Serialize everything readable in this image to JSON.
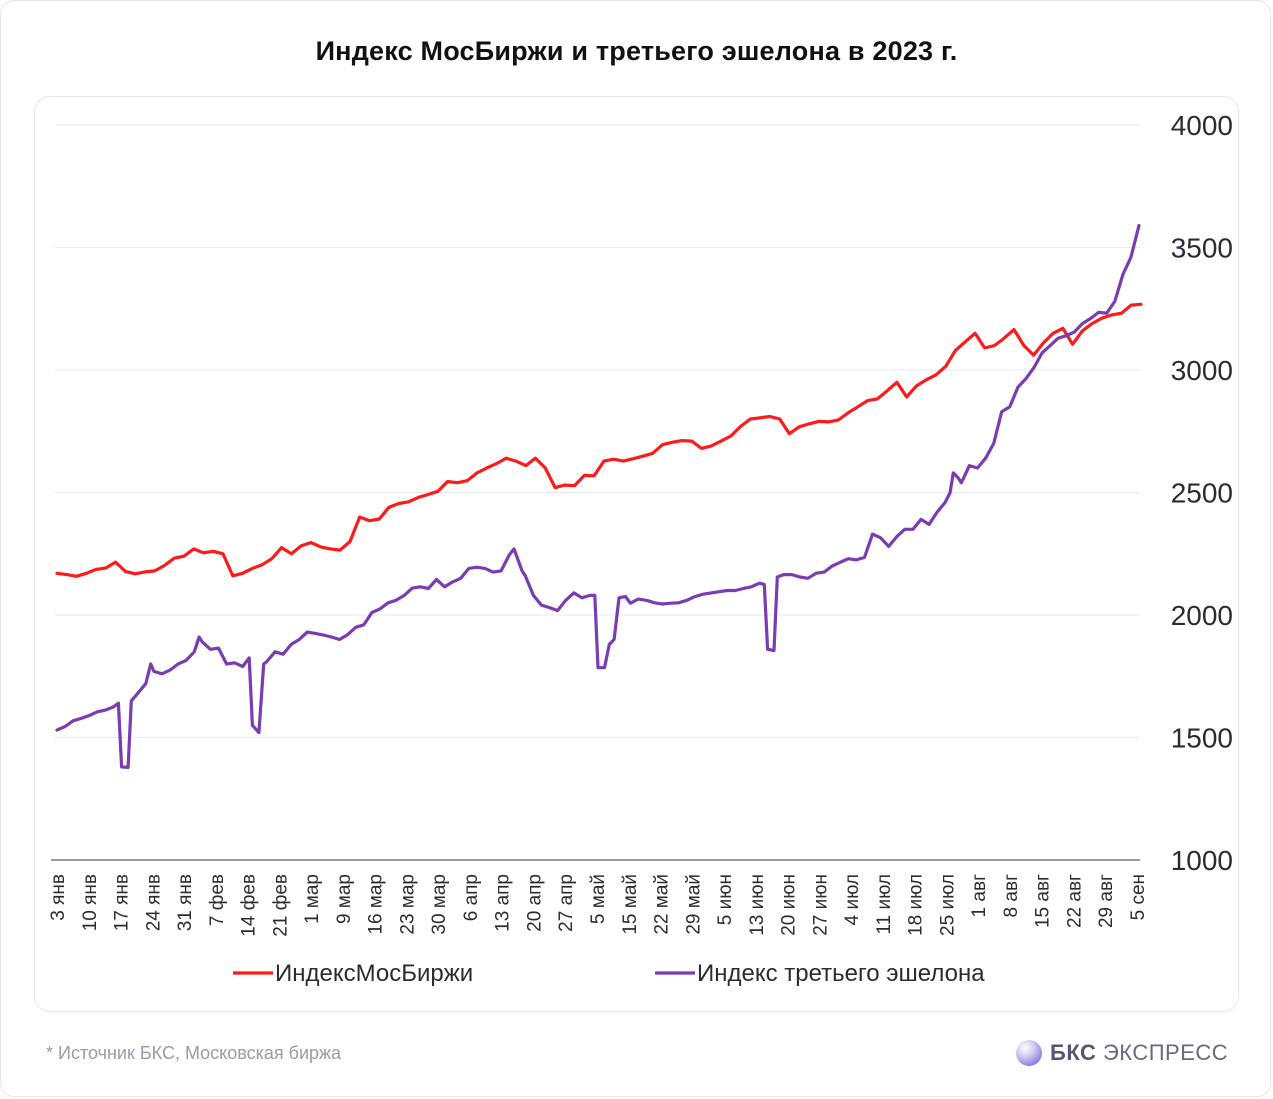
{
  "title": "Индекс МосБиржи и третьего эшелона в 2023 г.",
  "footer": {
    "source": "*  Источник БКС, Московская биржа",
    "brand_bold": "БКС",
    "brand_rest": "ЭКСПРЕСС"
  },
  "colors": {
    "moex": "#ff1a1a",
    "third_tier": "#7a3cb0",
    "grid": "#e9e9ee",
    "axis": "#7a7a80",
    "text": "#2b2b33"
  },
  "chart_data": {
    "type": "line",
    "ylim": [
      1000,
      4000
    ],
    "yticks": [
      4000,
      3500,
      3000,
      2500,
      2000,
      1500,
      1000
    ],
    "xtick_labels": [
      "3 янв",
      "10 янв",
      "17 янв",
      "24 янв",
      "31 янв",
      "7 фев",
      "14 фев",
      "21 фев",
      "1 мар",
      "9 мар",
      "16 мар",
      "23 мар",
      "30 мар",
      "6 апр",
      "13 апр",
      "20 апр",
      "27 апр",
      "5 май",
      "15 май",
      "22 май",
      "29 май",
      "5 июн",
      "13 июн",
      "20 июн",
      "27 июн",
      "4 июл",
      "11 июл",
      "18 июл",
      "25 июл",
      "1 авг",
      "8 авг",
      "15 авг",
      "22 авг",
      "29 авг",
      "5 сен"
    ],
    "legend_position": "bottom",
    "series": [
      {
        "name": "ИндексМосБиржи",
        "color": "#ff1a1a",
        "points": [
          [
            0,
            2170
          ],
          [
            0.5,
            2165
          ],
          [
            1,
            2158
          ],
          [
            1.5,
            2170
          ],
          [
            2,
            2186
          ],
          [
            2.5,
            2192
          ],
          [
            3,
            2216
          ],
          [
            3.5,
            2178
          ],
          [
            4,
            2168
          ],
          [
            4.5,
            2176
          ],
          [
            5,
            2180
          ],
          [
            5.5,
            2202
          ],
          [
            6,
            2232
          ],
          [
            6.5,
            2240
          ],
          [
            7,
            2270
          ],
          [
            7.5,
            2254
          ],
          [
            8,
            2260
          ],
          [
            8.5,
            2250
          ],
          [
            9,
            2160
          ],
          [
            9.5,
            2170
          ],
          [
            10,
            2190
          ],
          [
            10.5,
            2205
          ],
          [
            11,
            2230
          ],
          [
            11.5,
            2275
          ],
          [
            12,
            2250
          ],
          [
            12.5,
            2282
          ],
          [
            13,
            2296
          ],
          [
            13.5,
            2278
          ],
          [
            14,
            2270
          ],
          [
            14.5,
            2265
          ],
          [
            15,
            2300
          ],
          [
            15.5,
            2400
          ],
          [
            16,
            2385
          ],
          [
            16.5,
            2392
          ],
          [
            17,
            2440
          ],
          [
            17.5,
            2455
          ],
          [
            18,
            2462
          ],
          [
            18.5,
            2480
          ],
          [
            19,
            2492
          ],
          [
            19.5,
            2505
          ],
          [
            20,
            2545
          ],
          [
            20.5,
            2540
          ],
          [
            21,
            2548
          ],
          [
            21.5,
            2580
          ],
          [
            22,
            2600
          ],
          [
            22.5,
            2618
          ],
          [
            23,
            2640
          ],
          [
            23.5,
            2628
          ],
          [
            24,
            2610
          ],
          [
            24.5,
            2640
          ],
          [
            25,
            2600
          ],
          [
            25.5,
            2520
          ],
          [
            26,
            2530
          ],
          [
            26.5,
            2528
          ],
          [
            27,
            2570
          ],
          [
            27.5,
            2568
          ],
          [
            28,
            2628
          ],
          [
            28.5,
            2636
          ],
          [
            29,
            2628
          ],
          [
            29.5,
            2638
          ],
          [
            30,
            2648
          ],
          [
            30.5,
            2660
          ],
          [
            31,
            2695
          ],
          [
            31.5,
            2705
          ],
          [
            32,
            2712
          ],
          [
            32.5,
            2710
          ],
          [
            33,
            2680
          ],
          [
            33.5,
            2690
          ],
          [
            34,
            2710
          ],
          [
            34.5,
            2730
          ],
          [
            35,
            2770
          ],
          [
            35.5,
            2800
          ],
          [
            36,
            2805
          ],
          [
            36.5,
            2810
          ],
          [
            37,
            2800
          ],
          [
            37.5,
            2740
          ],
          [
            38,
            2768
          ],
          [
            38.5,
            2780
          ],
          [
            39,
            2790
          ],
          [
            39.5,
            2788
          ],
          [
            40,
            2796
          ],
          [
            40.5,
            2825
          ],
          [
            41,
            2850
          ],
          [
            41.5,
            2875
          ],
          [
            42,
            2882
          ],
          [
            42.5,
            2915
          ],
          [
            43,
            2950
          ],
          [
            43.5,
            2890
          ],
          [
            44,
            2935
          ],
          [
            44.5,
            2960
          ],
          [
            45,
            2980
          ],
          [
            45.5,
            3015
          ],
          [
            46,
            3080
          ],
          [
            46.5,
            3115
          ],
          [
            47,
            3150
          ],
          [
            47.5,
            3090
          ],
          [
            48,
            3100
          ],
          [
            48.5,
            3130
          ],
          [
            49,
            3165
          ],
          [
            49.5,
            3100
          ],
          [
            50,
            3060
          ],
          [
            50.5,
            3110
          ],
          [
            51,
            3150
          ],
          [
            51.5,
            3170
          ],
          [
            52,
            3105
          ],
          [
            52.5,
            3160
          ],
          [
            53,
            3190
          ],
          [
            53.5,
            3212
          ],
          [
            54,
            3225
          ],
          [
            54.5,
            3232
          ],
          [
            55,
            3265
          ],
          [
            55.5,
            3268
          ]
        ]
      },
      {
        "name": "Индекс третьего эшелона",
        "color": "#7a3cb0",
        "points": [
          [
            0,
            1530
          ],
          [
            0.5,
            1545
          ],
          [
            1,
            1568
          ],
          [
            1.5,
            1578
          ],
          [
            2,
            1590
          ],
          [
            2.5,
            1605
          ],
          [
            3,
            1612
          ],
          [
            3.5,
            1625
          ],
          [
            3.8,
            1640
          ],
          [
            4,
            1380
          ],
          [
            4.4,
            1378
          ],
          [
            4.6,
            1650
          ],
          [
            5,
            1680
          ],
          [
            5.5,
            1720
          ],
          [
            5.8,
            1800
          ],
          [
            6,
            1770
          ],
          [
            6.5,
            1760
          ],
          [
            7,
            1775
          ],
          [
            7.5,
            1800
          ],
          [
            8,
            1815
          ],
          [
            8.5,
            1850
          ],
          [
            8.8,
            1910
          ],
          [
            9,
            1890
          ],
          [
            9.5,
            1860
          ],
          [
            10,
            1865
          ],
          [
            10.5,
            1800
          ],
          [
            11,
            1805
          ],
          [
            11.5,
            1790
          ],
          [
            11.9,
            1825
          ],
          [
            12.1,
            1550
          ],
          [
            12.5,
            1520
          ],
          [
            12.8,
            1800
          ],
          [
            13,
            1810
          ],
          [
            13.5,
            1850
          ],
          [
            14,
            1840
          ],
          [
            14.5,
            1880
          ],
          [
            15,
            1900
          ],
          [
            15.5,
            1930
          ],
          [
            16,
            1925
          ],
          [
            16.5,
            1918
          ],
          [
            17,
            1910
          ],
          [
            17.5,
            1900
          ],
          [
            18,
            1920
          ],
          [
            18.5,
            1950
          ],
          [
            19,
            1960
          ],
          [
            19.5,
            2010
          ],
          [
            20,
            2025
          ],
          [
            20.5,
            2050
          ],
          [
            21,
            2060
          ],
          [
            21.5,
            2080
          ],
          [
            22,
            2110
          ],
          [
            22.5,
            2115
          ],
          [
            23,
            2108
          ],
          [
            23.5,
            2145
          ],
          [
            24,
            2115
          ],
          [
            24.5,
            2135
          ],
          [
            25,
            2150
          ],
          [
            25.5,
            2190
          ],
          [
            26,
            2195
          ],
          [
            26.5,
            2190
          ],
          [
            27,
            2175
          ],
          [
            27.5,
            2180
          ],
          [
            28,
            2245
          ],
          [
            28.3,
            2270
          ],
          [
            28.8,
            2180
          ],
          [
            29,
            2160
          ],
          [
            29.5,
            2080
          ],
          [
            30,
            2040
          ],
          [
            30.5,
            2030
          ],
          [
            31,
            2018
          ],
          [
            31.5,
            2060
          ],
          [
            32,
            2090
          ],
          [
            32.5,
            2070
          ],
          [
            33,
            2080
          ],
          [
            33.3,
            2080
          ],
          [
            33.5,
            1785
          ],
          [
            33.9,
            1785
          ],
          [
            34.2,
            1880
          ],
          [
            34.5,
            1900
          ],
          [
            34.8,
            2070
          ],
          [
            35.2,
            2075
          ],
          [
            35.5,
            2048
          ],
          [
            36,
            2065
          ],
          [
            36.5,
            2060
          ],
          [
            37,
            2050
          ],
          [
            37.5,
            2045
          ],
          [
            38,
            2048
          ],
          [
            38.5,
            2050
          ],
          [
            39,
            2060
          ],
          [
            39.5,
            2075
          ],
          [
            40,
            2085
          ],
          [
            40.5,
            2090
          ],
          [
            41,
            2095
          ],
          [
            41.5,
            2100
          ],
          [
            42,
            2100
          ],
          [
            42.5,
            2108
          ],
          [
            43,
            2115
          ],
          [
            43.5,
            2130
          ],
          [
            43.8,
            2125
          ],
          [
            44,
            1860
          ],
          [
            44.4,
            1855
          ],
          [
            44.6,
            2155
          ],
          [
            45,
            2165
          ],
          [
            45.5,
            2165
          ],
          [
            46,
            2155
          ],
          [
            46.5,
            2150
          ],
          [
            47,
            2170
          ],
          [
            47.5,
            2175
          ],
          [
            48,
            2200
          ],
          [
            48.5,
            2215
          ],
          [
            49,
            2230
          ],
          [
            49.5,
            2225
          ],
          [
            50,
            2235
          ],
          [
            50.5,
            2330
          ],
          [
            51,
            2315
          ],
          [
            51.5,
            2280
          ],
          [
            52,
            2320
          ],
          [
            52.5,
            2350
          ],
          [
            53,
            2350
          ],
          [
            53.5,
            2390
          ],
          [
            54,
            2370
          ],
          [
            54.5,
            2420
          ],
          [
            55,
            2460
          ],
          [
            55.3,
            2500
          ],
          [
            55.5,
            2580
          ],
          [
            55.8,
            2560
          ],
          [
            56,
            2540
          ],
          [
            56.5,
            2610
          ],
          [
            57,
            2600
          ],
          [
            57.5,
            2640
          ],
          [
            58,
            2700
          ],
          [
            58.5,
            2830
          ],
          [
            59,
            2850
          ],
          [
            59.5,
            2930
          ],
          [
            60,
            2965
          ],
          [
            60.5,
            3010
          ],
          [
            61,
            3070
          ],
          [
            61.5,
            3100
          ],
          [
            62,
            3130
          ],
          [
            62.5,
            3140
          ],
          [
            63,
            3155
          ],
          [
            63.5,
            3190
          ],
          [
            64,
            3210
          ],
          [
            64.5,
            3235
          ],
          [
            65,
            3232
          ],
          [
            65.5,
            3280
          ],
          [
            66,
            3390
          ],
          [
            66.5,
            3460
          ],
          [
            67,
            3590
          ]
        ]
      }
    ]
  }
}
